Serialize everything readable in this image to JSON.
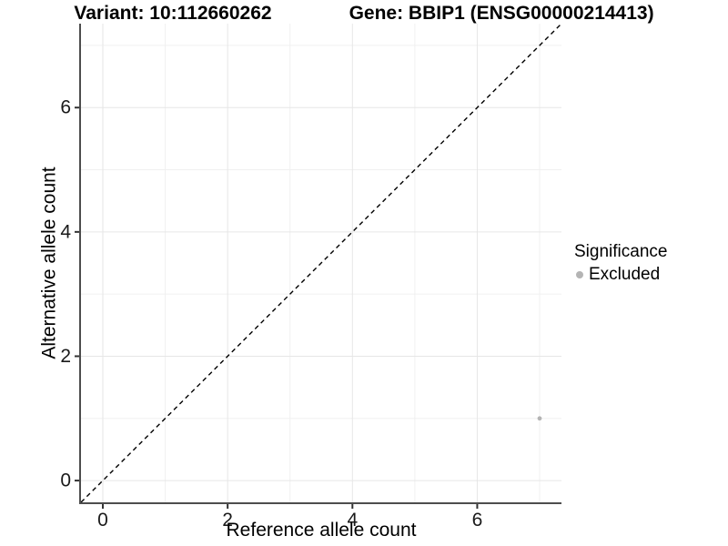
{
  "title": {
    "variant": "Variant: 10:112660262",
    "gene": "Gene: BBIP1 (ENSG00000214413)"
  },
  "chart_data": {
    "type": "scatter",
    "xlabel": "Reference allele count",
    "ylabel": "Alternative allele count",
    "xlim": [
      -0.35,
      7.35
    ],
    "ylim": [
      -0.35,
      7.35
    ],
    "x_major_ticks": [
      0,
      2,
      4,
      6
    ],
    "y_major_ticks": [
      0,
      2,
      4,
      6
    ],
    "x_minor_ticks": [
      1,
      3,
      5,
      7
    ],
    "y_minor_ticks": [
      1,
      3,
      5,
      7
    ],
    "grid": true,
    "points": [
      {
        "x": 7,
        "y": 1,
        "significance": "Excluded"
      }
    ],
    "reference_line": {
      "kind": "identity",
      "slope": 1,
      "intercept": 0,
      "style": "dashed"
    },
    "legend": {
      "position": "right",
      "title": "Significance",
      "items": [
        {
          "label": "Excluded",
          "color": "#b4b4b4"
        }
      ]
    }
  },
  "colors": {
    "point": "#b4b4b4",
    "grid_major": "#e6e6e6",
    "grid_minor": "#f0f0f0",
    "axis_line": "#4d4d4d",
    "tick_mark": "#333333",
    "reference_line": "#000000",
    "background": "#ffffff"
  }
}
